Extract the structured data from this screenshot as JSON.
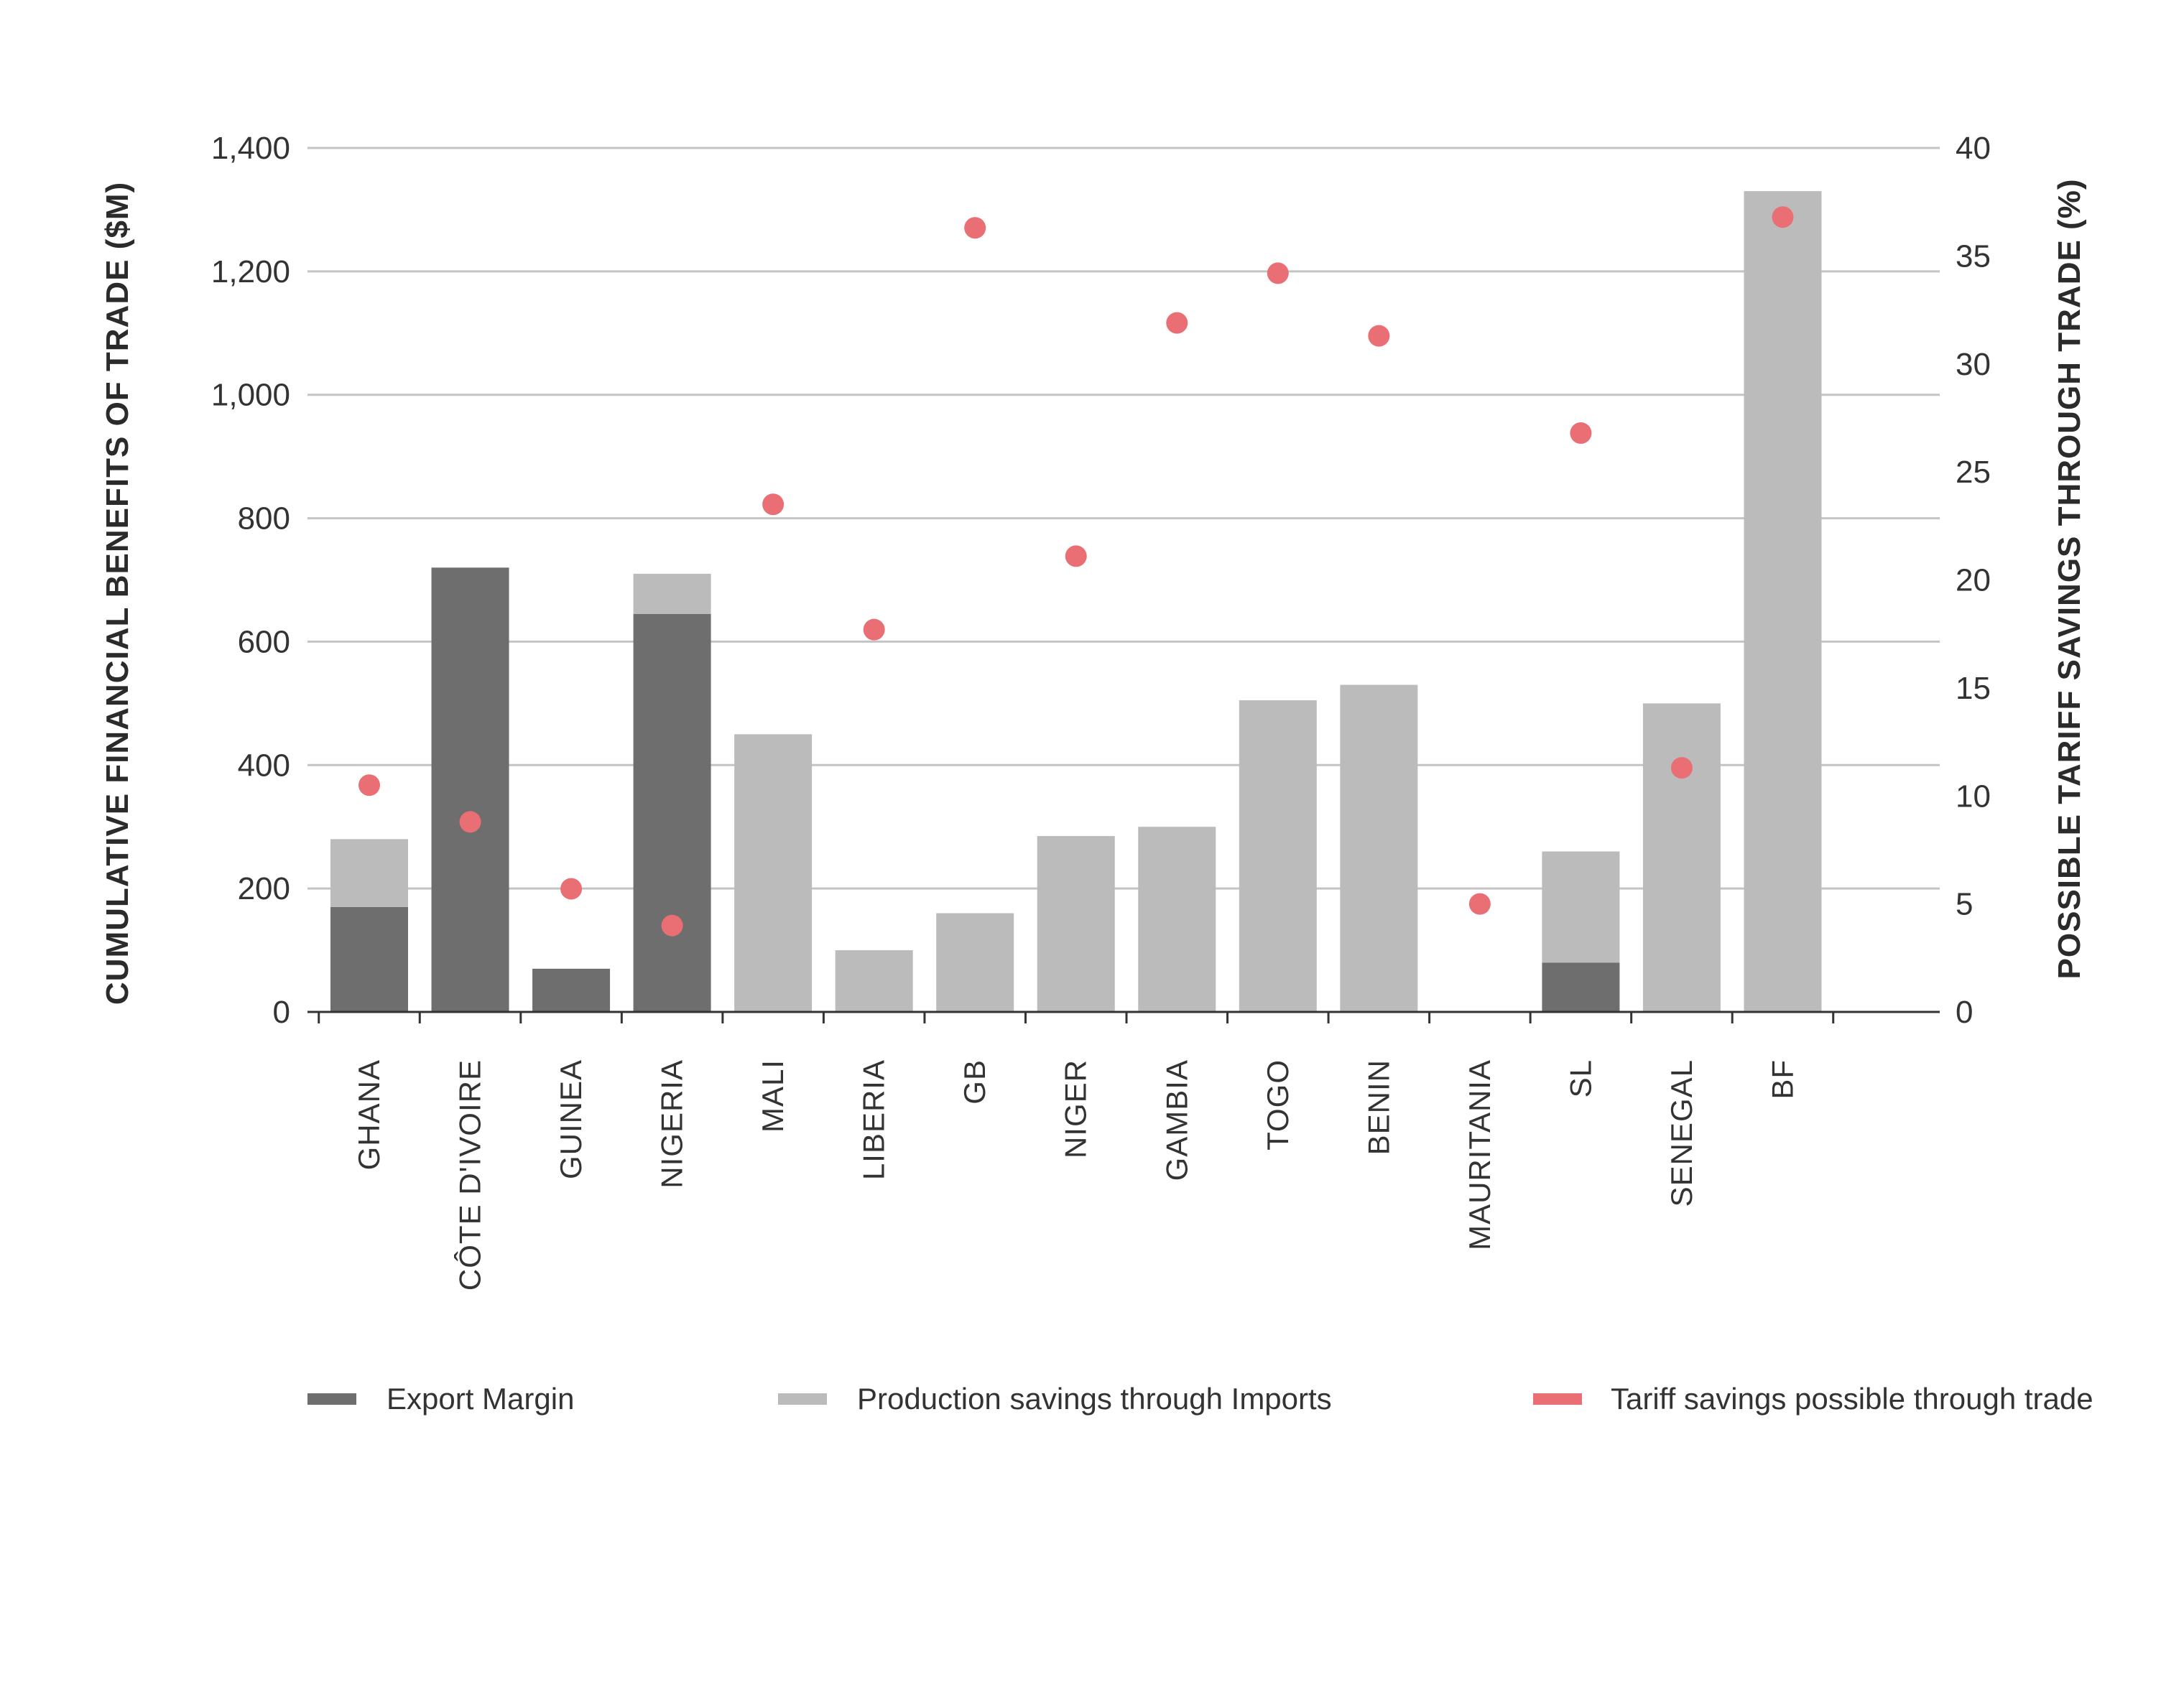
{
  "chart_data": {
    "type": "bar",
    "stacked": true,
    "categories": [
      "GHANA",
      "CÔTE D'IVOIRE",
      "GUINEA",
      "NIGERIA",
      "MALI",
      "LIBERIA",
      "GB",
      "NIGER",
      "GAMBIA",
      "TOGO",
      "BENIN",
      "MAURITANIA",
      "SL",
      "SENEGAL",
      "BF"
    ],
    "series": [
      {
        "name": "Export Margin",
        "axis": "left",
        "kind": "bar",
        "color": "#6e6e6e",
        "values": [
          170,
          720,
          70,
          645,
          0,
          0,
          0,
          0,
          0,
          0,
          0,
          0,
          80,
          0,
          0
        ]
      },
      {
        "name": "Production savings through Imports",
        "axis": "left",
        "kind": "bar",
        "color": "#bbbbbb",
        "values": [
          110,
          0,
          0,
          65,
          450,
          100,
          160,
          285,
          300,
          505,
          530,
          0,
          180,
          500,
          1330
        ]
      },
      {
        "name": "Tariff savings possible through trade",
        "axis": "right",
        "kind": "scatter",
        "color": "#ea6f74",
        "values": [
          10.5,
          8.8,
          5.7,
          4.0,
          23.5,
          17.7,
          36.3,
          21.1,
          31.9,
          34.2,
          31.3,
          5.0,
          26.8,
          11.3,
          36.8
        ]
      }
    ],
    "ylabel": "CUMULATIVE FINANCIAL BENEFITS OF TRADE ($M)",
    "y2label": "POSSIBLE TARIFF SAVINGS THROUGH TRADE (%)",
    "ylim": [
      0,
      1400
    ],
    "y2lim": [
      0,
      40
    ],
    "yticks": [
      "0",
      "200",
      "400",
      "600",
      "800",
      "1,000",
      "1,200",
      "1,400"
    ],
    "y2ticks": [
      "0",
      "5",
      "10",
      "15",
      "20",
      "25",
      "30",
      "35",
      "40"
    ],
    "grid": true,
    "legend_position": "bottom",
    "legend": [
      "Export Margin",
      "Production savings through Imports",
      "Tariff savings possible through trade"
    ]
  }
}
